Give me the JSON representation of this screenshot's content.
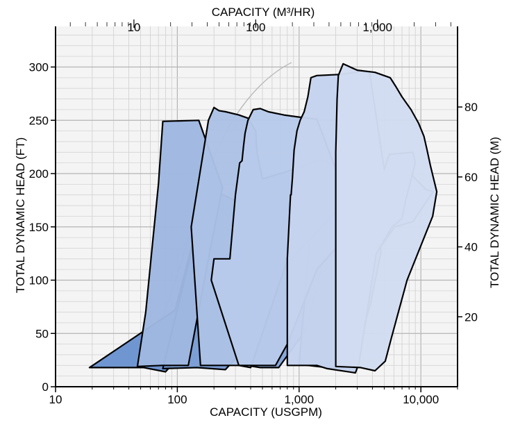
{
  "chart_data": {
    "type": "area",
    "title": "",
    "xlabel": "CAPACITY (USGPM)",
    "ylabel": "TOTAL DYNAMIC HEAD (FT)",
    "x2label": "CAPACITY (M³/HR)",
    "y2label": "TOTAL DYNAMIC HEAD (M)",
    "x_scale": "log",
    "xlim": [
      10,
      20000
    ],
    "ylim": [
      0,
      330
    ],
    "x_ticks": [
      10,
      100,
      1000,
      10000
    ],
    "x_tick_labels": [
      "10",
      "100",
      "1,000",
      "10,000"
    ],
    "y_ticks": [
      0,
      50,
      100,
      150,
      200,
      250,
      300
    ],
    "y_tick_labels": [
      "0",
      "50",
      "100",
      "150",
      "200",
      "250",
      "300"
    ],
    "x2_ticks": [
      10,
      100,
      1000
    ],
    "x2_tick_labels": [
      "10",
      "100",
      "1,000"
    ],
    "y2_ticks": [
      20,
      40,
      60,
      80
    ],
    "y2_tick_labels": [
      "20",
      "40",
      "60",
      "80"
    ],
    "grid": true,
    "fill_color_dark": "#6b93d0",
    "fill_color_light": "#d2dcf2",
    "edge_color": "#000000",
    "series": [
      {
        "outline": [
          [
            19,
            18
          ],
          [
            53,
            18
          ],
          [
            80,
            14
          ],
          [
            163,
            54
          ],
          [
            235,
            127
          ],
          [
            210,
            168
          ],
          [
            160,
            171
          ],
          [
            130,
            130
          ],
          [
            96,
            72
          ]
        ]
      },
      {
        "outline": [
          [
            76,
            17
          ],
          [
            145,
            18
          ],
          [
            248,
            16
          ],
          [
            430,
            46
          ],
          [
            590,
            125
          ],
          [
            555,
            162
          ],
          [
            490,
            168
          ],
          [
            333,
            172
          ],
          [
            178,
            187
          ],
          [
            147,
            150
          ]
        ]
      },
      {
        "outline": [
          [
            330,
            21
          ],
          [
            480,
            18
          ],
          [
            680,
            18
          ],
          [
            1150,
            54
          ],
          [
            1650,
            127
          ],
          [
            1500,
            160
          ],
          [
            1300,
            166
          ],
          [
            1000,
            171
          ],
          [
            490,
            186
          ],
          [
            414,
            149
          ]
        ]
      },
      {
        "outline": [
          [
            1000,
            21
          ],
          [
            1700,
            18
          ],
          [
            2300,
            18
          ],
          [
            2900,
            30
          ],
          [
            3800,
            75
          ],
          [
            4700,
            126
          ],
          [
            4500,
            162
          ],
          [
            3400,
            171
          ],
          [
            2200,
            172
          ],
          [
            1350,
            184
          ],
          [
            1250,
            150
          ]
        ]
      },
      {
        "outline": [
          [
            47,
            19
          ],
          [
            75,
            20
          ],
          [
            123,
            20
          ],
          [
            180,
            120
          ],
          [
            235,
            187
          ],
          [
            150,
            250
          ],
          [
            76,
            249
          ],
          [
            70,
            190
          ],
          [
            62,
            130
          ],
          [
            55,
            70
          ]
        ]
      },
      {
        "outline": [
          [
            155,
            20
          ],
          [
            320,
            20
          ],
          [
            400,
            18
          ],
          [
            780,
            115
          ],
          [
            3300,
            190
          ],
          [
            2600,
            200
          ],
          [
            2300,
            203
          ],
          [
            1500,
            213
          ],
          [
            800,
            202
          ],
          [
            500,
            195
          ],
          [
            450,
            220
          ],
          [
            440,
            240
          ],
          [
            380,
            252
          ],
          [
            320,
            255
          ],
          [
            250,
            258
          ],
          [
            220,
            259
          ],
          [
            200,
            262
          ],
          [
            180,
            250
          ],
          [
            130,
            150
          ]
        ]
      },
      {
        "outline": [
          [
            320,
            20
          ],
          [
            640,
            20
          ],
          [
            800,
            40
          ],
          [
            1400,
            110
          ],
          [
            3100,
            154
          ],
          [
            4600,
            130
          ],
          [
            6100,
            150
          ],
          [
            8600,
            155
          ],
          [
            12600,
            183
          ],
          [
            11000,
            185
          ],
          [
            8200,
            200
          ],
          [
            4200,
            150
          ],
          [
            3500,
            118
          ],
          [
            3000,
            130
          ],
          [
            2900,
            150
          ],
          [
            2800,
            160
          ],
          [
            1400,
            251
          ],
          [
            1000,
            253
          ],
          [
            750,
            255
          ],
          [
            560,
            258
          ],
          [
            480,
            261
          ],
          [
            420,
            260
          ],
          [
            380,
            250
          ],
          [
            360,
            238
          ],
          [
            350,
            226
          ],
          [
            340,
            212
          ],
          [
            325,
            210
          ],
          [
            300,
            180
          ],
          [
            270,
            120
          ],
          [
            220,
            120
          ],
          [
            200,
            120
          ],
          [
            190,
            100
          ]
        ]
      },
      {
        "outline": [
          [
            800,
            20
          ],
          [
            1400,
            20
          ],
          [
            1700,
            17
          ],
          [
            2900,
            13
          ],
          [
            3100,
            22
          ],
          [
            3500,
            60
          ],
          [
            4300,
            125
          ],
          [
            5800,
            150
          ],
          [
            7000,
            158
          ],
          [
            7500,
            175
          ],
          [
            9000,
            210
          ],
          [
            8600,
            220
          ],
          [
            5500,
            218
          ],
          [
            5000,
            204
          ],
          [
            3800,
            294
          ],
          [
            3500,
            296
          ],
          [
            3300,
            296
          ],
          [
            2200,
            293
          ],
          [
            1400,
            292
          ],
          [
            1250,
            290
          ],
          [
            1180,
            272
          ],
          [
            1100,
            258
          ],
          [
            1020,
            250
          ],
          [
            960,
            240
          ],
          [
            910,
            222
          ],
          [
            880,
            195
          ],
          [
            860,
            180
          ],
          [
            850,
            180
          ],
          [
            800,
            120
          ]
        ]
      },
      {
        "outline": [
          [
            2000,
            19
          ],
          [
            3200,
            18
          ],
          [
            4200,
            15
          ],
          [
            5100,
            24
          ],
          [
            5700,
            45
          ],
          [
            7700,
            100
          ],
          [
            12500,
            160
          ],
          [
            13500,
            183
          ],
          [
            12000,
            207
          ],
          [
            11200,
            223
          ],
          [
            10600,
            235
          ],
          [
            9600,
            247
          ],
          [
            8300,
            260
          ],
          [
            7000,
            272
          ],
          [
            6200,
            282
          ],
          [
            5600,
            290
          ],
          [
            4200,
            295
          ],
          [
            3000,
            297
          ],
          [
            2300,
            303
          ],
          [
            2100,
            292
          ],
          [
            2050,
            270
          ],
          [
            2000,
            220
          ]
        ]
      }
    ]
  }
}
